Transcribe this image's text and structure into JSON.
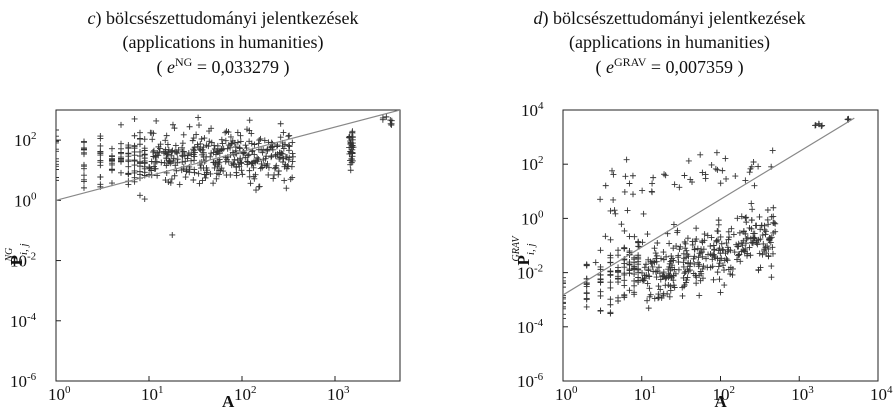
{
  "chart_data": [
    {
      "type": "scatter",
      "panel": "c",
      "title_prefix": "c",
      "title_main": ") bölcsészettudományi jelentkezések",
      "subtitle": "(applications in humanities)",
      "error_symbol": "e",
      "error_superscript": "NG",
      "error_value": "= 0,033279",
      "xlabel": "A",
      "ylabel_main": "P",
      "ylabel_sub": "i, j",
      "ylabel_sup": "NG",
      "x_scale": "log",
      "y_scale": "log",
      "xlim": [
        1,
        5000
      ],
      "ylim": [
        1e-06,
        1000
      ],
      "x_ticks": [
        {
          "base": "10",
          "exp": "0"
        },
        {
          "base": "10",
          "exp": "1"
        },
        {
          "base": "10",
          "exp": "2"
        },
        {
          "base": "10",
          "exp": "3"
        }
      ],
      "y_ticks": [
        {
          "base": "10",
          "exp": "-6"
        },
        {
          "base": "10",
          "exp": "-4"
        },
        {
          "base": "10",
          "exp": "-2"
        },
        {
          "base": "10",
          "exp": "0"
        },
        {
          "base": "10",
          "exp": "2"
        }
      ],
      "fit_line": {
        "x": [
          1,
          5000
        ],
        "y": [
          1,
          1000
        ]
      },
      "marker": "+",
      "grid": false
    },
    {
      "type": "scatter",
      "panel": "d",
      "title_prefix": "d",
      "title_main": ") bölcsészettudományi jelentkezések",
      "subtitle": "(applications in humanities)",
      "error_symbol": "e",
      "error_superscript": "GRAV",
      "error_value": "= 0,007359",
      "xlabel": "A",
      "ylabel_main": "P",
      "ylabel_sub": "i, j",
      "ylabel_sup": "GRAV",
      "x_scale": "log",
      "y_scale": "log",
      "xlim": [
        1,
        10000
      ],
      "ylim": [
        1e-06,
        10000
      ],
      "x_ticks": [
        {
          "base": "10",
          "exp": "0"
        },
        {
          "base": "10",
          "exp": "1"
        },
        {
          "base": "10",
          "exp": "2"
        },
        {
          "base": "10",
          "exp": "3"
        },
        {
          "base": "10",
          "exp": "4"
        }
      ],
      "y_ticks": [
        {
          "base": "10",
          "exp": "-6"
        },
        {
          "base": "10",
          "exp": "-4"
        },
        {
          "base": "10",
          "exp": "-2"
        },
        {
          "base": "10",
          "exp": "0"
        },
        {
          "base": "10",
          "exp": "2"
        },
        {
          "base": "10",
          "exp": "4"
        }
      ],
      "fit_line": {
        "x": [
          1,
          5000
        ],
        "y": [
          0.0015,
          5000
        ]
      },
      "marker": "+",
      "grid": false
    }
  ]
}
